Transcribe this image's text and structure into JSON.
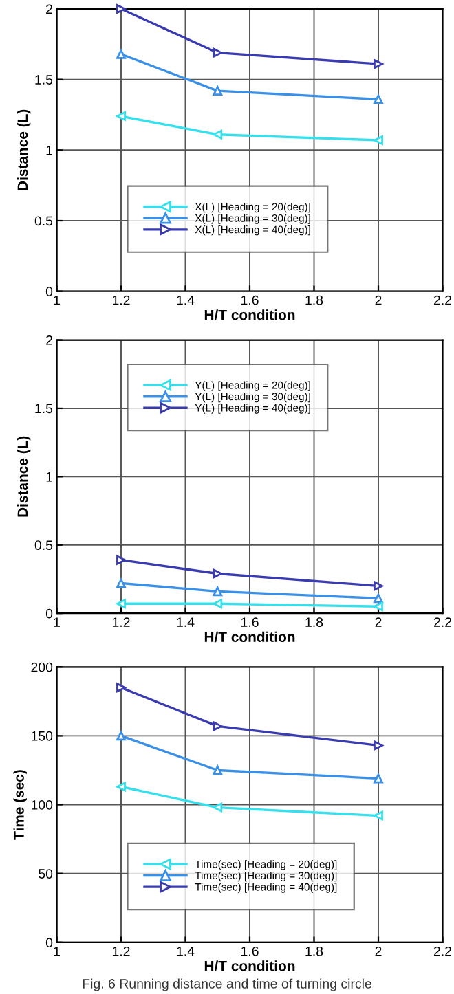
{
  "chart_data": [
    {
      "type": "line",
      "xlabel": "H/T condition",
      "ylabel": "Distance (L)",
      "x": [
        1.2,
        1.5,
        2.0
      ],
      "xlim": [
        1,
        2.2
      ],
      "xticks": [
        1,
        1.2,
        1.4,
        1.6,
        1.8,
        2,
        2.2
      ],
      "ylim": [
        0,
        2
      ],
      "yticks": [
        0,
        0.5,
        1,
        1.5,
        2
      ],
      "grid": true,
      "legend": "bottom left",
      "marker": "triangle",
      "line_style": "solid",
      "series": [
        {
          "name": "X(L) [Heading = 20(deg)]",
          "color": "#35e0ec",
          "values": [
            1.24,
            1.11,
            1.07
          ]
        },
        {
          "name": "X(L) [Heading = 30(deg)]",
          "color": "#3a90e6",
          "values": [
            1.68,
            1.42,
            1.36
          ]
        },
        {
          "name": "X(L) [Heading = 40(deg)]",
          "color": "#3b3bb0",
          "values": [
            2.0,
            1.69,
            1.61
          ]
        }
      ]
    },
    {
      "type": "line",
      "xlabel": "H/T condition",
      "ylabel": "Distance (L)",
      "x": [
        1.2,
        1.5,
        2.0
      ],
      "xlim": [
        1,
        2.2
      ],
      "xticks": [
        1,
        1.2,
        1.4,
        1.6,
        1.8,
        2,
        2.2
      ],
      "ylim": [
        0,
        2
      ],
      "yticks": [
        0,
        0.5,
        1,
        1.5,
        2
      ],
      "grid": true,
      "legend": "top left",
      "marker": "triangle",
      "line_style": "solid",
      "series": [
        {
          "name": "Y(L) [Heading = 20(deg)]",
          "color": "#35e0ec",
          "values": [
            0.07,
            0.07,
            0.05
          ]
        },
        {
          "name": "Y(L) [Heading = 30(deg)]",
          "color": "#3a90e6",
          "values": [
            0.22,
            0.16,
            0.11
          ]
        },
        {
          "name": "Y(L) [Heading = 40(deg)]",
          "color": "#3b3bb0",
          "values": [
            0.39,
            0.29,
            0.2
          ]
        }
      ]
    },
    {
      "type": "line",
      "xlabel": "H/T condition",
      "ylabel": "Time (sec)",
      "x": [
        1.2,
        1.5,
        2.0
      ],
      "xlim": [
        1,
        2.2
      ],
      "xticks": [
        1,
        1.2,
        1.4,
        1.6,
        1.8,
        2,
        2.2
      ],
      "ylim": [
        0,
        200
      ],
      "yticks": [
        0,
        50,
        100,
        150,
        200
      ],
      "grid": true,
      "legend": "bottom",
      "marker": "triangle",
      "line_style": "solid",
      "annotations": [
        "Fig. 6 Running distance and time of turning circle"
      ],
      "series": [
        {
          "name": "Time(sec) [Heading = 20(deg)]",
          "color": "#35e0ec",
          "values": [
            113,
            98,
            92
          ]
        },
        {
          "name": "Time(sec) [Heading = 30(deg)]",
          "color": "#3a90e6",
          "values": [
            150,
            125,
            119
          ]
        },
        {
          "name": "Time(sec) [Heading = 40(deg)]",
          "color": "#3b3bb0",
          "values": [
            185,
            157,
            143
          ]
        }
      ]
    }
  ]
}
